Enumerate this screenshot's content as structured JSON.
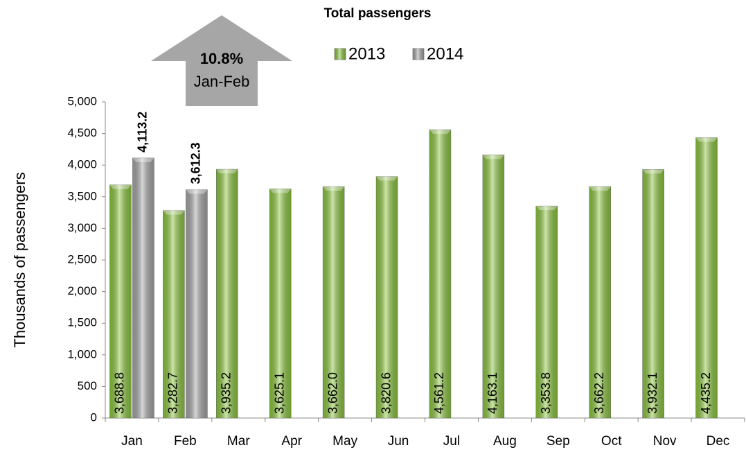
{
  "chart_data": {
    "type": "bar",
    "title": "Total passengers",
    "y_label": "Thousands of passengers",
    "annotation": {
      "value_text": "10.8%",
      "period": "Jan-Feb"
    },
    "categories": [
      "Jan",
      "Feb",
      "Mar",
      "Apr",
      "May",
      "Jun",
      "Jul",
      "Aug",
      "Sep",
      "Oct",
      "Nov",
      "Dec"
    ],
    "series": [
      {
        "name": "2013",
        "color": "#8cc63e",
        "values": [
          3688.8,
          3282.7,
          3935.2,
          3625.1,
          3662.0,
          3820.6,
          4561.2,
          4163.1,
          3353.8,
          3662.2,
          3932.1,
          4435.2
        ],
        "value_labels": [
          "3,688.8",
          "3,282.7",
          "3,935.2",
          "3,625.1",
          "3,662.0",
          "3,820.6",
          "4,561.2",
          "4,163.1",
          "3,353.8",
          "3,662.2",
          "3,932.1",
          "4,435.2"
        ]
      },
      {
        "name": "2014",
        "color": "#a6a6a6",
        "values": [
          4113.2,
          3612.3,
          null,
          null,
          null,
          null,
          null,
          null,
          null,
          null,
          null,
          null
        ],
        "value_labels": [
          "4,113.2",
          "3,612.3",
          null,
          null,
          null,
          null,
          null,
          null,
          null,
          null,
          null,
          null
        ]
      }
    ],
    "ylim": [
      0,
      5000
    ],
    "yticks": [
      0,
      500,
      {
        "value": 1000,
        "label": "1,000"
      },
      {
        "value": 1500,
        "label": "1,500"
      },
      {
        "value": 2000,
        "label": "2,000"
      },
      {
        "value": 2500,
        "label": "2,500"
      },
      {
        "value": 3000,
        "label": "3,000"
      },
      {
        "value": 3500,
        "label": "3,500"
      },
      {
        "value": 4000,
        "label": "4,000"
      },
      {
        "value": 4500,
        "label": "4,500"
      },
      {
        "value": 5000,
        "label": "5,000"
      }
    ],
    "grid": false,
    "legend": "top"
  }
}
